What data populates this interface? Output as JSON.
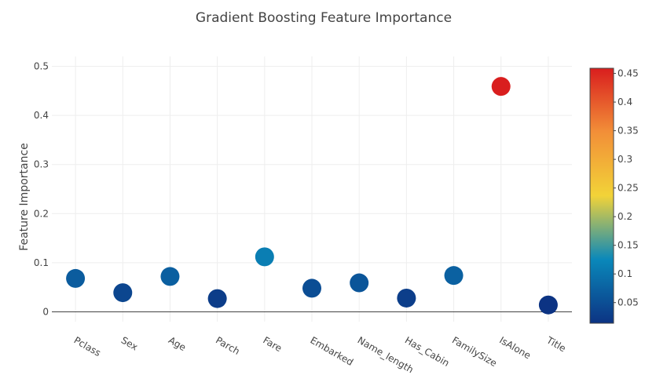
{
  "chart_data": {
    "type": "scatter",
    "title": "Gradient Boosting Feature Importance",
    "xlabel": "",
    "ylabel": "Feature Importance",
    "categories": [
      "Pclass",
      "Sex",
      "Age",
      "Parch",
      "Fare",
      "Embarked",
      "Name_length",
      "Has_Cabin",
      "FamilySize",
      "IsAlone",
      "Title"
    ],
    "values": [
      0.068,
      0.039,
      0.072,
      0.027,
      0.112,
      0.048,
      0.059,
      0.028,
      0.074,
      0.459,
      0.014
    ],
    "ylim": [
      -0.02,
      0.52
    ],
    "yticks": [
      0,
      0.1,
      0.2,
      0.3,
      0.4,
      0.5
    ],
    "ytick_labels": [
      "0",
      "0.1",
      "0.2",
      "0.3",
      "0.4",
      "0.5"
    ],
    "grid": true,
    "colorscale": "Portland",
    "colorbar": {
      "range": [
        0.014,
        0.459
      ],
      "ticks": [
        0.05,
        0.1,
        0.15,
        0.2,
        0.25,
        0.3,
        0.35,
        0.4,
        0.45
      ],
      "tick_labels": [
        "0.05",
        "0.1",
        "0.15",
        "0.2",
        "0.25",
        "0.3",
        "0.35",
        "0.4",
        "0.45"
      ],
      "placement": "right"
    },
    "colors": [
      "#0c3383",
      "#0a88ba",
      "#f2d338",
      "#f28f38",
      "#d91e1e"
    ]
  }
}
